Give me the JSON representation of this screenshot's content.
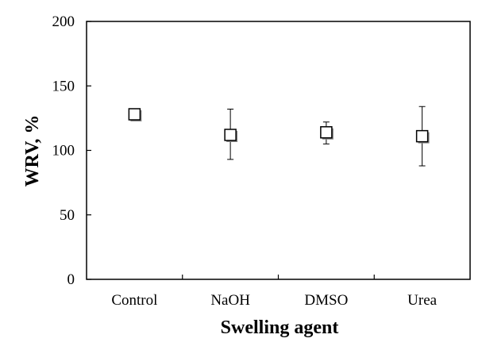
{
  "chart_data": {
    "type": "scatter",
    "title": "",
    "xlabel": "Swelling agent",
    "ylabel": "WRV, %",
    "categories": [
      "Control",
      "NaOH",
      "DMSO",
      "Urea"
    ],
    "series": [
      {
        "values": [
          128,
          112,
          114,
          111
        ],
        "error_low": [
          128,
          93,
          105,
          88
        ],
        "error_high": [
          128,
          132,
          122,
          134
        ]
      }
    ],
    "ylim": [
      0,
      200
    ],
    "yticks": [
      0,
      50,
      100,
      150,
      200
    ],
    "grid": false,
    "legend": "none",
    "marker": "square-open",
    "colors": {
      "marker_fill": "#ffffff",
      "stroke": "#000000"
    }
  }
}
